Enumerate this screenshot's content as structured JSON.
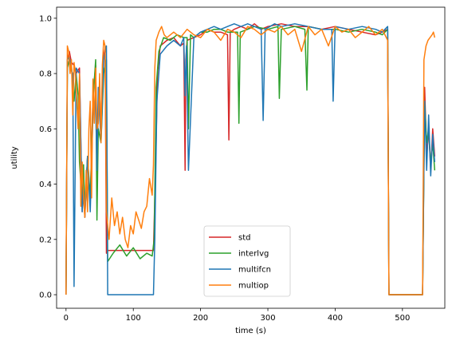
{
  "chart_data": {
    "type": "line",
    "xlabel": "time (s)",
    "ylabel": "utility",
    "xlim": [
      -14,
      563
    ],
    "ylim": [
      -0.049,
      1.04
    ],
    "xticks": [
      0,
      100,
      200,
      300,
      400,
      500
    ],
    "yticks": [
      0.0,
      0.2,
      0.4,
      0.6,
      0.8,
      1.0
    ],
    "grid": false,
    "legend_position": "lower center",
    "series": [
      {
        "name": "std",
        "color": "#d62728",
        "x": [
          0,
          2,
          5,
          8,
          12,
          15,
          20,
          24,
          26,
          28,
          32,
          36,
          40,
          44,
          46,
          48,
          52,
          55,
          58,
          60,
          62,
          130,
          133,
          136,
          140,
          150,
          160,
          170,
          175,
          177,
          178,
          180,
          190,
          200,
          210,
          220,
          230,
          240,
          242,
          244,
          250,
          260,
          270,
          280,
          290,
          300,
          320,
          340,
          360,
          380,
          400,
          420,
          440,
          460,
          470,
          478,
          480,
          530,
          533,
          536,
          539,
          542,
          545,
          548
        ],
        "y": [
          0.0,
          0.85,
          0.88,
          0.84,
          0.83,
          0.8,
          0.82,
          0.3,
          0.45,
          0.28,
          0.5,
          0.33,
          0.72,
          0.83,
          0.45,
          0.7,
          0.6,
          0.85,
          0.89,
          0.15,
          0.16,
          0.16,
          0.45,
          0.8,
          0.9,
          0.92,
          0.93,
          0.9,
          0.91,
          0.45,
          0.85,
          0.92,
          0.93,
          0.94,
          0.96,
          0.95,
          0.95,
          0.94,
          0.56,
          0.95,
          0.96,
          0.97,
          0.96,
          0.98,
          0.96,
          0.97,
          0.98,
          0.97,
          0.97,
          0.96,
          0.97,
          0.96,
          0.95,
          0.94,
          0.95,
          0.96,
          0.0,
          0.0,
          0.75,
          0.5,
          0.6,
          0.45,
          0.6,
          0.5
        ]
      },
      {
        "name": "interlvg",
        "color": "#2ca02c",
        "x": [
          0,
          2,
          5,
          8,
          12,
          15,
          18,
          20,
          24,
          26,
          28,
          32,
          36,
          40,
          44,
          46,
          48,
          52,
          56,
          60,
          62,
          70,
          80,
          90,
          100,
          110,
          120,
          128,
          131,
          134,
          138,
          145,
          155,
          165,
          175,
          180,
          182,
          185,
          190,
          200,
          210,
          220,
          230,
          240,
          255,
          257,
          259,
          270,
          280,
          300,
          315,
          317,
          320,
          340,
          355,
          358,
          360,
          380,
          400,
          420,
          440,
          460,
          470,
          478,
          480,
          530,
          533,
          536,
          539,
          542,
          545,
          548
        ],
        "y": [
          0.0,
          0.82,
          0.85,
          0.83,
          0.7,
          0.8,
          0.72,
          0.48,
          0.33,
          0.47,
          0.3,
          0.5,
          0.35,
          0.7,
          0.85,
          0.27,
          0.6,
          0.55,
          0.8,
          0.85,
          0.12,
          0.15,
          0.18,
          0.14,
          0.17,
          0.13,
          0.15,
          0.14,
          0.2,
          0.75,
          0.88,
          0.93,
          0.92,
          0.94,
          0.93,
          0.93,
          0.6,
          0.94,
          0.93,
          0.95,
          0.95,
          0.96,
          0.96,
          0.95,
          0.95,
          0.62,
          0.95,
          0.96,
          0.97,
          0.96,
          0.97,
          0.71,
          0.96,
          0.97,
          0.96,
          0.74,
          0.97,
          0.96,
          0.96,
          0.95,
          0.96,
          0.95,
          0.94,
          0.96,
          0.0,
          0.0,
          0.7,
          0.55,
          0.6,
          0.47,
          0.55,
          0.45
        ]
      },
      {
        "name": "multifcn",
        "color": "#1f77b4",
        "x": [
          0,
          2,
          5,
          8,
          10,
          12,
          15,
          20,
          24,
          26,
          28,
          32,
          36,
          40,
          44,
          46,
          48,
          52,
          56,
          60,
          62,
          70,
          80,
          90,
          100,
          110,
          120,
          130,
          132,
          135,
          140,
          150,
          160,
          170,
          175,
          177,
          179,
          182,
          190,
          200,
          210,
          220,
          230,
          240,
          250,
          260,
          270,
          280,
          290,
          293,
          296,
          310,
          320,
          340,
          360,
          380,
          395,
          397,
          400,
          420,
          440,
          460,
          470,
          478,
          480,
          530,
          533,
          536,
          539,
          542,
          545,
          548
        ],
        "y": [
          0.0,
          0.85,
          0.86,
          0.81,
          0.8,
          0.03,
          0.82,
          0.8,
          0.3,
          0.38,
          0.28,
          0.5,
          0.3,
          0.65,
          0.7,
          0.45,
          0.75,
          0.55,
          0.85,
          0.9,
          0.0,
          0.0,
          0.0,
          0.0,
          0.0,
          0.0,
          0.0,
          0.0,
          0.2,
          0.7,
          0.87,
          0.9,
          0.92,
          0.9,
          0.93,
          0.72,
          0.9,
          0.45,
          0.93,
          0.95,
          0.96,
          0.97,
          0.96,
          0.97,
          0.98,
          0.97,
          0.98,
          0.97,
          0.96,
          0.63,
          0.96,
          0.98,
          0.97,
          0.98,
          0.97,
          0.96,
          0.96,
          0.7,
          0.97,
          0.96,
          0.97,
          0.96,
          0.95,
          0.97,
          0.0,
          0.0,
          0.7,
          0.45,
          0.65,
          0.43,
          0.58,
          0.48
        ]
      },
      {
        "name": "multiop",
        "color": "#ff7f0e",
        "x": [
          0,
          2,
          4,
          6,
          8,
          10,
          12,
          14,
          16,
          18,
          20,
          22,
          24,
          26,
          28,
          30,
          32,
          34,
          36,
          38,
          40,
          42,
          44,
          46,
          48,
          50,
          52,
          54,
          56,
          58,
          60,
          64,
          68,
          72,
          76,
          80,
          84,
          88,
          92,
          96,
          100,
          104,
          108,
          112,
          116,
          120,
          124,
          128,
          130,
          132,
          134,
          138,
          142,
          146,
          150,
          160,
          170,
          180,
          190,
          200,
          210,
          220,
          230,
          240,
          250,
          260,
          270,
          280,
          290,
          300,
          310,
          320,
          330,
          340,
          350,
          360,
          370,
          380,
          390,
          400,
          410,
          420,
          430,
          440,
          450,
          460,
          470,
          478,
          480,
          530,
          532,
          535,
          538,
          541,
          544,
          546,
          548
        ],
        "y": [
          0.0,
          0.9,
          0.88,
          0.8,
          0.85,
          0.65,
          0.84,
          0.8,
          0.7,
          0.6,
          0.8,
          0.32,
          0.48,
          0.35,
          0.28,
          0.45,
          0.3,
          0.6,
          0.7,
          0.35,
          0.78,
          0.62,
          0.82,
          0.6,
          0.62,
          0.8,
          0.55,
          0.83,
          0.92,
          0.9,
          0.3,
          0.2,
          0.35,
          0.25,
          0.3,
          0.22,
          0.28,
          0.2,
          0.17,
          0.25,
          0.22,
          0.3,
          0.27,
          0.24,
          0.3,
          0.32,
          0.42,
          0.36,
          0.47,
          0.82,
          0.92,
          0.95,
          0.97,
          0.94,
          0.93,
          0.95,
          0.93,
          0.96,
          0.94,
          0.93,
          0.96,
          0.95,
          0.92,
          0.96,
          0.95,
          0.93,
          0.97,
          0.96,
          0.94,
          0.96,
          0.95,
          0.97,
          0.94,
          0.96,
          0.88,
          0.97,
          0.94,
          0.96,
          0.9,
          0.97,
          0.95,
          0.96,
          0.93,
          0.95,
          0.97,
          0.94,
          0.96,
          0.92,
          0.0,
          0.0,
          0.85,
          0.9,
          0.92,
          0.93,
          0.94,
          0.95,
          0.93
        ]
      }
    ]
  }
}
